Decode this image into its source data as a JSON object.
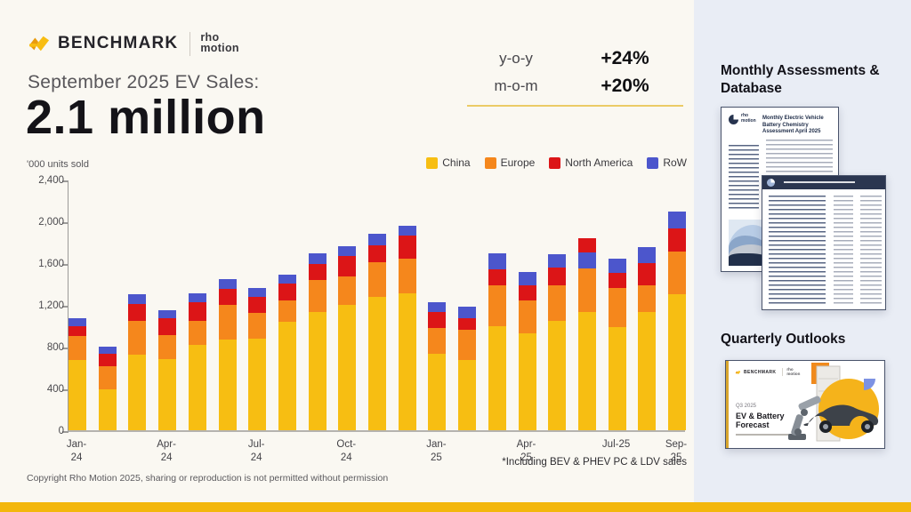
{
  "header": {
    "brand": {
      "benchmark": "BENCHMARK",
      "rho_line1": "rho",
      "rho_line2": "motion"
    },
    "title": "September 2025 EV Sales:",
    "headline": "2.1 million",
    "stats": [
      {
        "label": "y-o-y",
        "value": "+24%"
      },
      {
        "label": "m-o-m",
        "value": "+20%"
      }
    ]
  },
  "chart": {
    "units_label": "'000 units sold",
    "footnote": "*Including BEV & PHEV PC & LDV sales"
  },
  "chart_data": {
    "type": "bar",
    "stacked": true,
    "title": "September 2025 EV Sales: 2.1 million",
    "ylabel": "'000 units sold",
    "ylim": [
      0,
      2400
    ],
    "yticks": [
      0,
      400,
      800,
      1200,
      1600,
      2000,
      2400
    ],
    "ytick_labels": [
      "0",
      "400",
      "800",
      "1,200",
      "1,600",
      "2,000",
      "2,400"
    ],
    "grid": false,
    "legend_position": "top-right",
    "categories": [
      "Jan-24",
      "Feb-24",
      "Mar-24",
      "Apr-24",
      "May-24",
      "Jun-24",
      "Jul-24",
      "Aug-24",
      "Sep-24",
      "Oct-24",
      "Nov-24",
      "Dec-24",
      "Jan-25",
      "Feb-25",
      "Mar-25",
      "Apr-25",
      "May-25",
      "Jun-25",
      "Jul-25",
      "Aug-25",
      "Sep-25"
    ],
    "series": [
      {
        "name": "China",
        "color": "#F7BE12",
        "values": [
          670,
          390,
          725,
          685,
          815,
          870,
          875,
          1035,
          1130,
          1200,
          1275,
          1315,
          735,
          675,
          1000,
          930,
          1050,
          1135,
          990,
          1130,
          1305
        ]
      },
      {
        "name": "Europe",
        "color": "#F5871C",
        "values": [
          230,
          225,
          320,
          230,
          235,
          330,
          250,
          205,
          310,
          275,
          330,
          330,
          245,
          285,
          390,
          315,
          335,
          415,
          370,
          260,
          410
        ]
      },
      {
        "name": "North America",
        "color": "#DC1517",
        "values": [
          95,
          115,
          165,
          155,
          180,
          150,
          150,
          165,
          150,
          190,
          165,
          215,
          155,
          115,
          150,
          145,
          170,
          135,
          150,
          210,
          220
        ]
      },
      {
        "name": "RoW",
        "color": "#4C56CC",
        "values": [
          80,
          70,
          90,
          80,
          80,
          95,
          85,
          85,
          105,
          95,
          110,
          100,
          95,
          105,
          150,
          125,
          130,
          155,
          135,
          150,
          160
        ]
      }
    ],
    "stack_order": [
      "China",
      "Europe",
      "North America",
      "RoW"
    ],
    "stack_order_exceptions": {
      "Jun-25": [
        "China",
        "Europe",
        "RoW",
        "North America"
      ]
    },
    "x_tick_labels": [
      {
        "index": 0,
        "lines": [
          "Jan-",
          "24"
        ]
      },
      {
        "index": 3,
        "lines": [
          "Apr-",
          "24"
        ]
      },
      {
        "index": 6,
        "lines": [
          "Jul-",
          "24"
        ]
      },
      {
        "index": 9,
        "lines": [
          "Oct-",
          "24"
        ]
      },
      {
        "index": 12,
        "lines": [
          "Jan-",
          "25"
        ]
      },
      {
        "index": 15,
        "lines": [
          "Apr-",
          "25"
        ]
      },
      {
        "index": 18,
        "lines": [
          "Jul-25"
        ]
      },
      {
        "index": 20,
        "lines": [
          "Sep-",
          "25"
        ]
      }
    ]
  },
  "sidebar": {
    "section1_title": "Monthly Assessments & Database",
    "doc1": {
      "brand_line1": "rho",
      "brand_line2": "motion",
      "title": "Monthly Electric Vehicle Battery Chemistry Assessment April 2025"
    },
    "section2_title": "Quarterly Outlooks",
    "doc3": {
      "brand": "BENCHMARK",
      "brand2_line1": "rho",
      "brand2_line2": "motion",
      "quarter": "Q3 2025",
      "title_line1": "EV & Battery",
      "title_line2": "Forecast"
    }
  },
  "footer": {
    "copyright": "Copyright Rho Motion 2025, sharing or reproduction is not permitted without permission"
  },
  "colors": {
    "accent_yellow": "#F3B70D",
    "background": "#FAF8F2",
    "sidebar_bg": "#E9EDF5"
  }
}
